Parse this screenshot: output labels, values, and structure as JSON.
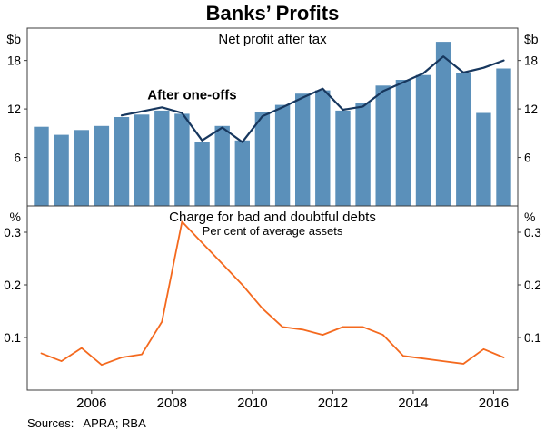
{
  "title": "Banks’ Profits",
  "sources": "Sources:   APRA; RBA",
  "x_axis": {
    "range": [
      2004.4,
      2016.6
    ],
    "ticks": [
      2006,
      2008,
      2010,
      2012,
      2014,
      2016
    ]
  },
  "chart_data": [
    {
      "type": "bar",
      "title": "Net profit after tax",
      "unit_left": "$b",
      "unit_right": "$b",
      "ylim": [
        0,
        22
      ],
      "yticks": [
        6,
        12,
        18
      ],
      "grid": false,
      "bar_color": "#5b90ba",
      "line_color": "#17375e",
      "annotation": {
        "text": "After one-offs",
        "x": 2008.5,
        "y": 13.2
      },
      "bars": {
        "name": "Net profit after tax",
        "x": [
          2004.75,
          2005.25,
          2005.75,
          2006.25,
          2006.75,
          2007.25,
          2007.75,
          2008.25,
          2008.75,
          2009.25,
          2009.75,
          2010.25,
          2010.75,
          2011.25,
          2011.75,
          2012.25,
          2012.75,
          2013.25,
          2013.75,
          2014.25,
          2014.75,
          2015.25,
          2015.75,
          2016.25
        ],
        "values": [
          9.8,
          8.8,
          9.4,
          9.9,
          11.0,
          11.3,
          11.8,
          11.4,
          7.9,
          9.9,
          8.1,
          11.6,
          12.5,
          13.9,
          14.3,
          11.8,
          12.8,
          14.9,
          15.6,
          16.2,
          20.3,
          16.4,
          11.5,
          17.0
        ]
      },
      "line": {
        "name": "After one-offs",
        "x": [
          2006.75,
          2007.25,
          2007.75,
          2008.25,
          2008.75,
          2009.25,
          2009.75,
          2010.25,
          2010.75,
          2011.25,
          2011.75,
          2012.25,
          2012.75,
          2013.25,
          2013.75,
          2014.25,
          2014.75,
          2015.25,
          2015.75,
          2016.25
        ],
        "values": [
          11.2,
          11.7,
          12.2,
          11.5,
          8.1,
          9.7,
          7.9,
          11.1,
          12.2,
          13.4,
          14.5,
          11.9,
          12.3,
          14.2,
          15.3,
          16.4,
          18.5,
          16.5,
          17.1,
          18.0
        ]
      }
    },
    {
      "type": "line",
      "title": "Charge for bad and doubtful debts",
      "subtitle": "Per cent of average assets",
      "unit_left": "%",
      "unit_right": "%",
      "ylim": [
        0,
        0.35
      ],
      "yticks": [
        0.1,
        0.2,
        0.3
      ],
      "grid": false,
      "line_color": "#f4691e",
      "line": {
        "name": "Charge for bad and doubtful debts",
        "x": [
          2004.75,
          2005.25,
          2005.75,
          2006.25,
          2006.75,
          2007.25,
          2007.75,
          2008.25,
          2008.75,
          2009.25,
          2009.75,
          2010.25,
          2010.75,
          2011.25,
          2011.75,
          2012.25,
          2012.75,
          2013.25,
          2013.75,
          2014.25,
          2014.75,
          2015.25,
          2015.75,
          2016.25
        ],
        "values": [
          0.07,
          0.055,
          0.08,
          0.048,
          0.062,
          0.068,
          0.13,
          0.32,
          0.28,
          0.24,
          0.2,
          0.155,
          0.12,
          0.115,
          0.105,
          0.12,
          0.12,
          0.105,
          0.065,
          0.06,
          0.055,
          0.05,
          0.078,
          0.062
        ]
      }
    }
  ]
}
